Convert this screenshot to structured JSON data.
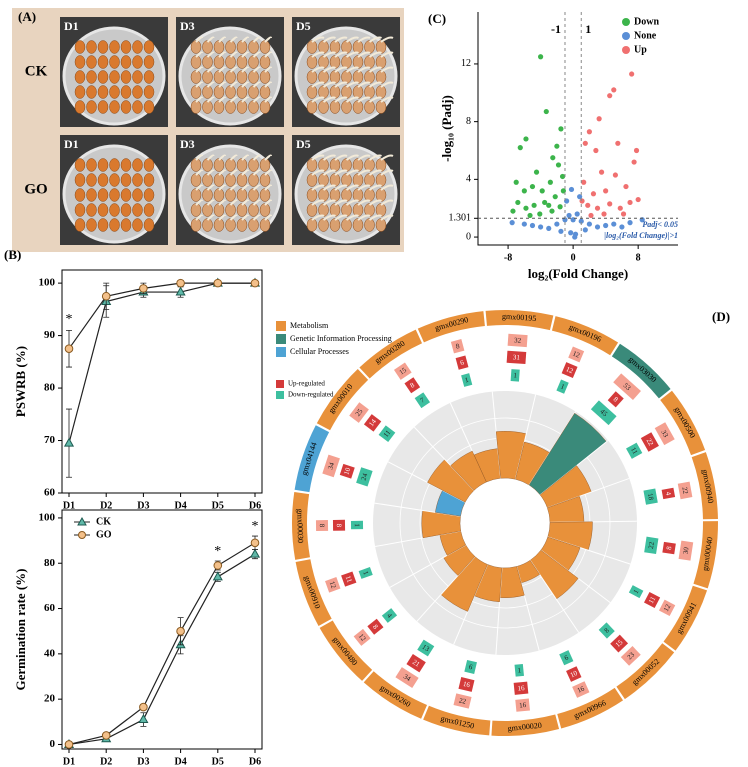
{
  "panel_a": {
    "label": "(A)",
    "rows": [
      "CK",
      "GO"
    ],
    "columns": [
      "D1",
      "D3",
      "D5"
    ]
  },
  "chart_data": [
    {
      "type": "line",
      "panel_label": "(B)",
      "ylabel": "PSWRB (%)",
      "categories": [
        "D1",
        "D2",
        "D3",
        "D4",
        "D5",
        "D6"
      ],
      "series": [
        {
          "name": "CK",
          "color": "#5fb8a8",
          "marker": "triangle",
          "values": [
            69.5,
            96.5,
            98.3,
            98.3,
            100,
            100
          ],
          "errors": [
            6.5,
            3,
            1,
            1,
            0,
            0
          ]
        },
        {
          "name": "GO",
          "color": "#f3c08a",
          "marker": "circle",
          "values": [
            87.5,
            97.5,
            99,
            100,
            100,
            100
          ],
          "errors": [
            3.5,
            2.5,
            1,
            0.5,
            0,
            0
          ]
        }
      ],
      "ylim": [
        60,
        102.5
      ],
      "yticks": [
        60,
        70,
        80,
        90,
        100
      ],
      "annotations": [
        {
          "text": "*",
          "x": 0,
          "y": 93
        }
      ]
    },
    {
      "type": "line",
      "ylabel": "Germination rate (%)",
      "categories": [
        "D1",
        "D2",
        "D3",
        "D4",
        "D5",
        "D6"
      ],
      "series": [
        {
          "name": "CK",
          "color": "#5fb8a8",
          "marker": "triangle",
          "values": [
            0,
            2.5,
            11,
            44,
            74,
            84
          ],
          "errors": [
            0,
            1,
            3,
            4,
            2,
            2
          ]
        },
        {
          "name": "GO",
          "color": "#f3c08a",
          "marker": "circle",
          "values": [
            0,
            4,
            16.5,
            50,
            79,
            89
          ],
          "errors": [
            0,
            1,
            1,
            6,
            2,
            3
          ]
        }
      ],
      "ylim": [
        -2,
        103.5
      ],
      "yticks": [
        0,
        20,
        40,
        60,
        80,
        100
      ],
      "legend": "upper left",
      "annotations": [
        {
          "text": "*",
          "x": 4,
          "y": 85
        },
        {
          "text": "*",
          "x": 5,
          "y": 96
        }
      ]
    },
    {
      "type": "scatter",
      "panel_label": "(C)",
      "xlabel": "log₂(Fold Change)",
      "ylabel": "-log₁₀ (Padj)",
      "xlim": [
        -11.7,
        12.9
      ],
      "ylim": [
        -0.55,
        15.6
      ],
      "xticks": [
        -8,
        0,
        8
      ],
      "yticks": [
        0,
        1.301,
        4,
        8,
        12
      ],
      "vlines": [
        -1,
        1
      ],
      "hline": 1.301,
      "legend": "upper right",
      "notes": [
        "Padj< 0.05",
        "|log₂(Fold Change)|>1"
      ],
      "series": [
        {
          "name": "Down",
          "color": "#3cb44b",
          "x": [
            -4,
            -6.5,
            -5.8,
            -3.3,
            -1.5,
            -2.5,
            -1.8,
            -4.5,
            -5,
            -6,
            -7,
            -3.8,
            -2.8,
            -1.3,
            -2.2,
            -3.5,
            -4.8,
            -5.8,
            -6.8,
            -7.4,
            -1.6,
            -2.6,
            -4.1,
            -5.3,
            -1.2,
            -3,
            -2
          ],
          "y": [
            12.5,
            6.2,
            6.8,
            8.7,
            7.5,
            5.5,
            5,
            4.5,
            3.5,
            3.2,
            3.8,
            3.2,
            3.8,
            4.2,
            2.8,
            2.4,
            2.2,
            2,
            2.4,
            1.8,
            2.1,
            1.8,
            1.6,
            1.5,
            3.2,
            2.2,
            6.3
          ]
        },
        {
          "name": "None",
          "color": "#5b8fd6",
          "x": [
            -7.5,
            -6,
            -5,
            -4,
            -3,
            -2,
            -1,
            -0.5,
            0,
            0.5,
            1,
            2,
            3,
            4,
            5,
            6,
            7,
            8.5,
            -0.3,
            0.3,
            -1.5,
            1.5,
            -0.8,
            0.8,
            -0.2,
            0.2
          ],
          "y": [
            1,
            0.9,
            0.8,
            0.7,
            0.6,
            0.9,
            1.2,
            1.5,
            1.2,
            1.6,
            1.1,
            0.9,
            0.7,
            0.8,
            0.9,
            0.7,
            1,
            1.2,
            0.3,
            0.2,
            0.4,
            0.5,
            2.5,
            2.8,
            3.3,
            0
          ]
        },
        {
          "name": "Up",
          "color": "#f07070",
          "x": [
            7.2,
            5,
            4.5,
            2,
            1.5,
            2.8,
            3.5,
            5.2,
            7.8,
            7.5,
            6.5,
            4,
            2.5,
            1.3,
            1.8,
            3,
            4.5,
            5.8,
            7,
            8,
            6.2,
            3.8,
            2.2,
            1.1,
            5.5,
            3.2
          ],
          "y": [
            11.3,
            10.2,
            9.8,
            7.3,
            6.5,
            6,
            4.5,
            4.3,
            6,
            5.2,
            3.5,
            3.2,
            3,
            3.8,
            2.2,
            2,
            2.3,
            2,
            2.4,
            2.6,
            1.6,
            1.6,
            1.5,
            2.5,
            6.5,
            8.2
          ]
        }
      ]
    },
    {
      "type": "circular",
      "panel_label": "(D)",
      "categories": [
        "gmx00290",
        "gmx00195",
        "gmx00196",
        "gmx03030",
        "gmx00500",
        "gmx00940",
        "gmx00040",
        "gmx00941",
        "gmx00052",
        "gmx00966",
        "gmx00020",
        "gmx01250",
        "gmx00260",
        "gmx00480",
        "gmx00910",
        "gmx00030",
        "gmx04144",
        "gmx00010",
        "gmx00280"
      ],
      "classes": [
        0,
        0,
        0,
        1,
        0,
        0,
        0,
        0,
        0,
        0,
        0,
        0,
        0,
        0,
        0,
        0,
        2,
        0,
        0
      ],
      "class_names": [
        "Metabolism",
        "Genetic Information Processing",
        "Cellular Processes"
      ],
      "class_colors": [
        "#e8913a",
        "#3a8a7a",
        "#4ea3d4"
      ],
      "totals": [
        8,
        32,
        12,
        53,
        33,
        22,
        30,
        12,
        23,
        16,
        16,
        22,
        34,
        12,
        12,
        8,
        34,
        25,
        15
      ],
      "total_color": "#f4a090",
      "series": [
        {
          "name": "Up-regulated",
          "color": "#d43a3a",
          "values": [
            6,
            31,
            12,
            8,
            22,
            4,
            8,
            11,
            15,
            10,
            16,
            16,
            21,
            8,
            11,
            8,
            10,
            14,
            8
          ]
        },
        {
          "name": "Down-regulated",
          "color": "#3dbf9f",
          "values": [
            1,
            1,
            1,
            45,
            11,
            18,
            22,
            1,
            8,
            6,
            1,
            6,
            13,
            4,
            1,
            1,
            24,
            11,
            7
          ]
        }
      ],
      "bar_values": [
        0.35,
        0.55,
        0.45,
        1,
        0.55,
        0.4,
        0.5,
        0.4,
        0.55,
        0.2,
        0.35,
        0.4,
        0.6,
        0.3,
        0.25,
        0.45,
        0.3,
        0.5,
        0.4
      ]
    }
  ]
}
